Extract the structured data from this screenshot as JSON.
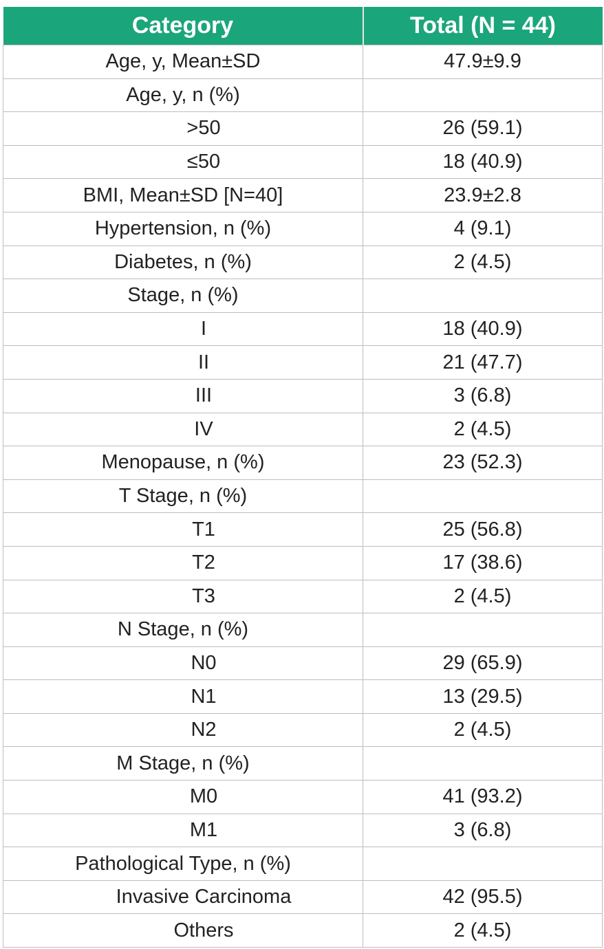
{
  "table": {
    "header": [
      "Category",
      "Total (N = 44)"
    ],
    "rows": [
      {
        "label": "Age, y, Mean±SD",
        "value": "47.9±9.9"
      },
      {
        "label": "Age, y, n (%)",
        "items": [
          {
            "label": ">50",
            "value": "26 (59.1)"
          },
          {
            "label": "≤50",
            "value": "18 (40.9)"
          }
        ]
      },
      {
        "label": "BMI, Mean±SD [N=40]",
        "value": "23.9±2.8"
      },
      {
        "label": "Hypertension, n (%)",
        "value": "4 (9.1)"
      },
      {
        "label": "Diabetes, n (%)",
        "value": "2 (4.5)"
      },
      {
        "label": "Stage, n (%)",
        "items": [
          {
            "label": "I",
            "value": "18 (40.9)"
          },
          {
            "label": "II",
            "value": "21 (47.7)"
          },
          {
            "label": "III",
            "value": "3 (6.8)"
          },
          {
            "label": "IV",
            "value": "2 (4.5)"
          }
        ]
      },
      {
        "label": "Menopause, n (%)",
        "value": "23 (52.3)"
      },
      {
        "label": "T Stage, n (%)",
        "items": [
          {
            "label": "T1",
            "value": "25 (56.8)"
          },
          {
            "label": "T2",
            "value": "17 (38.6)"
          },
          {
            "label": "T3",
            "value": "2 (4.5)"
          }
        ]
      },
      {
        "label": "N Stage, n (%)",
        "items": [
          {
            "label": "N0",
            "value": "29 (65.9)"
          },
          {
            "label": "N1",
            "value": "13 (29.5)"
          },
          {
            "label": "N2",
            "value": "2 (4.5)"
          }
        ]
      },
      {
        "label": "M Stage, n (%)",
        "items": [
          {
            "label": "M0",
            "value": "41 (93.2)"
          },
          {
            "label": "M1",
            "value": "3 (6.8)"
          }
        ]
      },
      {
        "label": "Pathological Type, n (%)",
        "items": [
          {
            "label": "Invasive Carcinoma",
            "value": "42 (95.5)"
          },
          {
            "label": "Others",
            "value": "2 (4.5)"
          }
        ]
      }
    ]
  }
}
